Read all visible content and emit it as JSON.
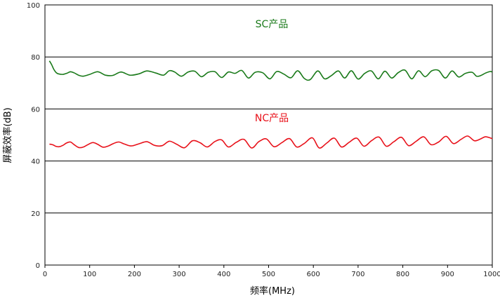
{
  "chart_data": {
    "type": "line",
    "xlabel": "频率(MHz)",
    "ylabel": "屏蔽效率(dB)",
    "xlim": [
      0,
      1000
    ],
    "ylim": [
      0,
      100
    ],
    "x_ticks": [
      "0",
      "100",
      "200",
      "300",
      "400",
      "500",
      "600",
      "700",
      "800",
      "900",
      "1000"
    ],
    "y_ticks": [
      "0",
      "20",
      "40",
      "60",
      "80",
      "100"
    ],
    "grid": {
      "horizontal": true,
      "vertical": false
    },
    "series": [
      {
        "name": "SC产品",
        "color": "#1a7a1a",
        "x": [
          10,
          15,
          20,
          25,
          30,
          40,
          50,
          57,
          65,
          75,
          85,
          100,
          118,
          135,
          152,
          170,
          190,
          210,
          228,
          248,
          265,
          278,
          290,
          305,
          320,
          335,
          350,
          365,
          380,
          395,
          410,
          425,
          440,
          455,
          470,
          487,
          503,
          518,
          534,
          550,
          565,
          580,
          593,
          610,
          625,
          640,
          656,
          670,
          685,
          700,
          715,
          730,
          745,
          760,
          775,
          790,
          805,
          820,
          835,
          850,
          865,
          880,
          895,
          910,
          925,
          940,
          955,
          965,
          975,
          985,
          995,
          1000
        ],
        "values": [
          78.5,
          77.0,
          75.2,
          74.0,
          73.5,
          73.3,
          73.8,
          74.3,
          73.9,
          73.0,
          72.6,
          73.3,
          74.3,
          73.0,
          72.9,
          74.2,
          73.0,
          73.5,
          74.6,
          73.8,
          73.0,
          74.7,
          74.2,
          72.6,
          74.2,
          74.5,
          72.4,
          74.1,
          74.3,
          72.1,
          74.2,
          73.7,
          74.8,
          71.9,
          74.1,
          73.9,
          71.6,
          74.4,
          73.4,
          72.0,
          74.7,
          71.7,
          71.3,
          74.6,
          71.6,
          72.8,
          74.6,
          71.9,
          74.7,
          71.5,
          73.7,
          74.6,
          71.6,
          74.5,
          71.9,
          74.0,
          74.9,
          71.6,
          74.7,
          72.4,
          74.7,
          74.8,
          71.9,
          74.6,
          72.3,
          73.7,
          74.1,
          72.6,
          72.9,
          73.8,
          74.4,
          74.2
        ]
      },
      {
        "name": "NC产品",
        "color": "#e8111a",
        "x": [
          10,
          18,
          25,
          32,
          40,
          48,
          57,
          65,
          75,
          85,
          95,
          107,
          118,
          130,
          142,
          153,
          165,
          178,
          193,
          210,
          228,
          245,
          262,
          278,
          295,
          312,
          330,
          347,
          363,
          380,
          395,
          410,
          428,
          445,
          462,
          478,
          495,
          512,
          530,
          547,
          563,
          580,
          598,
          613,
          630,
          647,
          663,
          680,
          697,
          713,
          730,
          747,
          763,
          780,
          797,
          813,
          830,
          847,
          863,
          880,
          897,
          913,
          930,
          945,
          960,
          973,
          985,
          1000
        ],
        "values": [
          46.5,
          46.2,
          45.6,
          45.5,
          46.0,
          46.9,
          47.3,
          46.3,
          45.2,
          45.3,
          46.2,
          47.1,
          46.4,
          45.3,
          45.8,
          46.7,
          47.3,
          46.5,
          45.8,
          46.6,
          47.4,
          46.0,
          45.9,
          47.6,
          46.4,
          45.1,
          47.8,
          47.0,
          45.4,
          47.5,
          48.1,
          45.4,
          47.2,
          48.3,
          45.0,
          47.4,
          48.5,
          45.5,
          47.1,
          48.6,
          45.4,
          46.8,
          48.9,
          45.0,
          46.9,
          48.8,
          45.4,
          47.2,
          48.8,
          45.7,
          47.8,
          49.2,
          45.7,
          47.4,
          49.1,
          45.9,
          47.6,
          49.3,
          46.3,
          47.3,
          49.5,
          46.7,
          48.3,
          49.6,
          47.8,
          48.4,
          49.3,
          48.6
        ]
      }
    ]
  }
}
